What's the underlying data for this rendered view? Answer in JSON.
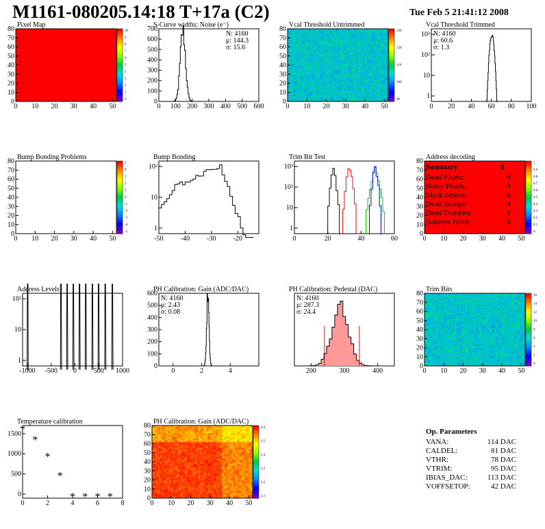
{
  "header": {
    "title": "M1161-080205.14:18 T+17a (C2)",
    "date": "Tue Feb  5 21:41:12 2008"
  },
  "colors": {
    "frame": "#000000",
    "red": "#ff0000",
    "green": "#00cc00",
    "blue": "#0000ff",
    "pink": "#ff9999"
  },
  "summary": {
    "title": "Summary",
    "total": "0",
    "rows": [
      {
        "label": "Dead Pixels:",
        "value": "0"
      },
      {
        "label": "Noisy Pixels:",
        "value": "0"
      },
      {
        "label": "Mask defects:",
        "value": "0"
      },
      {
        "label": "Dead Bumps:",
        "value": "0"
      },
      {
        "label": "Dead Trimbits:",
        "value": "0"
      },
      {
        "label": "Address Probl:",
        "value": "0"
      }
    ]
  },
  "op_params": {
    "title": "Op. Parameters",
    "rows": [
      {
        "label": "VANA:",
        "value": "114 DAC"
      },
      {
        "label": "CALDEL:",
        "value": "81 DAC"
      },
      {
        "label": "VTHR:",
        "value": "78 DAC"
      },
      {
        "label": "VTRIM:",
        "value": "95 DAC"
      },
      {
        "label": "IBIAS_DAC:",
        "value": "113 DAC"
      },
      {
        "label": "VOFFSETOP:",
        "value": "42 DAC"
      }
    ]
  },
  "chart_data": [
    {
      "id": "pixel_map",
      "type": "heatmap",
      "title": "Pixel Map",
      "xlim": [
        0,
        52
      ],
      "ylim": [
        0,
        80
      ],
      "xticks": [
        "0",
        "10",
        "20",
        "30",
        "40",
        "50"
      ],
      "yticks": [
        "0",
        "10",
        "20",
        "30",
        "40",
        "50",
        "60",
        "70",
        "80"
      ],
      "fill": "uniform",
      "fill_color": "#ff0000",
      "zlim": [
        0,
        10
      ],
      "zticks": [
        "10",
        "9",
        "8",
        "7",
        "6",
        "5",
        "4",
        "3",
        "2",
        "1",
        "0"
      ]
    },
    {
      "id": "scurve",
      "type": "histogram",
      "title": "S-Curve widths: Noise (e⁻)",
      "xlim": [
        0,
        600
      ],
      "ylim": [
        0,
        700
      ],
      "xticks": [
        "0",
        "100",
        "200",
        "300",
        "400",
        "500",
        "600"
      ],
      "yticks": [
        "0",
        "100",
        "200",
        "300",
        "400",
        "500",
        "600",
        "700"
      ],
      "stats": [
        "N: 4160",
        "μ: 144.3",
        "σ: 15.6"
      ],
      "peak": {
        "mean": 144.3,
        "sigma": 15.6,
        "height": 680
      }
    },
    {
      "id": "vcal_untrimmed",
      "type": "heatmap",
      "title": "Vcal Threshold Untrimmed",
      "xlim": [
        0,
        52
      ],
      "ylim": [
        0,
        80
      ],
      "xticks": [
        "0",
        "10",
        "20",
        "30",
        "40",
        "50"
      ],
      "yticks": [
        "0",
        "10",
        "20",
        "30",
        "40",
        "50",
        "60",
        "70",
        "80"
      ],
      "fill": "noise_cyan_green",
      "zticks": [
        "130",
        "120",
        "110",
        "100",
        "90"
      ]
    },
    {
      "id": "vcal_trimmed",
      "type": "histogram",
      "title": "Vcal Threshold Trimmed",
      "xlim": [
        0,
        100
      ],
      "log_y": true,
      "xticks": [
        "0",
        "20",
        "40",
        "60",
        "80",
        "100"
      ],
      "yticks": [
        "1",
        "10",
        "10²",
        "10³"
      ],
      "stats": [
        "N: 4160",
        "μ: 60.6",
        "σ: 1.3"
      ],
      "peak": {
        "mean": 60.6,
        "sigma": 1.3,
        "height": 900
      }
    },
    {
      "id": "bump_problems",
      "type": "heatmap",
      "title": "Bump Bonding Problems",
      "xlim": [
        0,
        52
      ],
      "ylim": [
        0,
        80
      ],
      "xticks": [
        "0",
        "10",
        "20",
        "30",
        "40",
        "50"
      ],
      "yticks": [
        "0",
        "10",
        "20",
        "30",
        "40",
        "50",
        "60",
        "70",
        "80"
      ],
      "fill": "empty",
      "zticks": [
        "5",
        "4",
        "3",
        "2",
        "1",
        "0",
        "-1",
        "-2",
        "-3",
        "-4",
        "-5"
      ]
    },
    {
      "id": "bump_bonding",
      "type": "histogram",
      "title": "Bump Bonding",
      "xlim": [
        -50,
        -12
      ],
      "log_y": true,
      "xticks": [
        "-50",
        "-40",
        "-30",
        "-20"
      ],
      "yticks": [
        "1",
        "10",
        "10²"
      ],
      "shape": "broad"
    },
    {
      "id": "trim_bit_test",
      "type": "histogram",
      "title": "Trim Bit Test",
      "xlim": [
        0,
        60
      ],
      "log_y": true,
      "xticks": [
        "0",
        "20",
        "40",
        "60"
      ],
      "yticks": [
        "1",
        "10",
        "10²",
        "10³"
      ],
      "series": [
        {
          "color": "#000000",
          "low": 20,
          "high": 27
        },
        {
          "color": "#ff0000",
          "low": 29,
          "high": 37
        },
        {
          "color": "#00cc00",
          "low": 43,
          "high": 54
        },
        {
          "color": "#0000ff",
          "low": 45,
          "high": 52
        }
      ]
    },
    {
      "id": "address_decoding",
      "type": "heatmap",
      "title": "Address decoding",
      "xlim": [
        0,
        52
      ],
      "ylim": [
        0,
        80
      ],
      "xticks": [
        "0",
        "10",
        "20",
        "30",
        "40",
        "50"
      ],
      "yticks": [
        "0",
        "10",
        "20",
        "30",
        "40",
        "50",
        "60",
        "70",
        "80"
      ],
      "fill": "uniform",
      "fill_color": "#ff0000",
      "zticks": [
        "1",
        "0.9",
        "0.8",
        "0.7",
        "0.6",
        "0.5",
        "0.4",
        "0.3",
        "0.2",
        "0.1",
        "0"
      ]
    },
    {
      "id": "address_levels",
      "type": "histogram",
      "title": "Address Levels",
      "xlim": [
        -1100,
        1000
      ],
      "log_y": true,
      "xticks": [
        "-1000",
        "-500",
        "0",
        "500",
        "1000"
      ],
      "yticks": [
        "1",
        "10",
        "10²"
      ],
      "spikes": [
        -980,
        -280,
        -150,
        -20,
        110,
        240,
        380,
        510,
        650,
        800
      ]
    },
    {
      "id": "ph_gain",
      "type": "histogram",
      "title": "PH Calibration: Gain (ADC/DAC)",
      "xlim": [
        -1,
        6
      ],
      "ylim": [
        0,
        600
      ],
      "xticks": [
        "0",
        "2",
        "4"
      ],
      "yticks": [
        "0",
        "100",
        "200",
        "300",
        "400",
        "500",
        "600"
      ],
      "stats": [
        "N: 4160",
        "μ: 2.43",
        "σ: 0.08"
      ],
      "peak": {
        "mean": 2.43,
        "sigma": 0.08,
        "height": 590
      }
    },
    {
      "id": "ph_pedestal",
      "type": "histogram",
      "title": "PH Calibration: Pedestal (DAC)",
      "xlim": [
        150,
        450
      ],
      "ylim": [
        0,
        100
      ],
      "xticks": [
        "200",
        "300",
        "400"
      ],
      "yticks": [],
      "stats": [
        "N: 4160",
        "μ: 287.3",
        "σ: 24.4"
      ],
      "peak": {
        "mean": 287.3,
        "sigma": 24.4,
        "height": 85
      },
      "markers": [
        240,
        345
      ]
    },
    {
      "id": "trim_bits",
      "type": "heatmap",
      "title": "Trim Bits",
      "xlim": [
        0,
        52
      ],
      "ylim": [
        0,
        80
      ],
      "xticks": [
        "0",
        "10",
        "20",
        "30",
        "40",
        "50"
      ],
      "yticks": [
        "0",
        "10",
        "20",
        "30",
        "40",
        "50",
        "60",
        "70",
        "80"
      ],
      "fill": "noise_cyan_green",
      "zticks": [
        "16",
        "14",
        "12",
        "10",
        "8",
        "6",
        "4",
        "2",
        "0"
      ]
    },
    {
      "id": "temperature",
      "type": "scatter",
      "title": "Temperature calibration",
      "xlim": [
        0,
        8
      ],
      "ylim": [
        -100,
        1700
      ],
      "xticks": [
        "0",
        "2",
        "4",
        "6",
        "8"
      ],
      "yticks": [
        "0",
        "500",
        "1000",
        "1500"
      ],
      "x": [
        0,
        1,
        2,
        3,
        4,
        5,
        6,
        7
      ],
      "y": [
        1610,
        1340,
        930,
        450,
        -70,
        -70,
        -70,
        -70
      ]
    },
    {
      "id": "ph_gain_map",
      "type": "heatmap",
      "title": "PH Calibration: Gain (ADC/DAC)",
      "xlim": [
        0,
        52
      ],
      "ylim": [
        0,
        80
      ],
      "xticks": [
        "0",
        "10",
        "20",
        "30",
        "40",
        "50"
      ],
      "yticks": [
        "0",
        "10",
        "20",
        "30",
        "40",
        "50",
        "60",
        "70",
        "80"
      ],
      "fill": "noise_red_yellow",
      "zticks": [
        "2.6",
        "2.5",
        "2.4",
        "2.3",
        "2.2",
        "2.1"
      ]
    }
  ]
}
